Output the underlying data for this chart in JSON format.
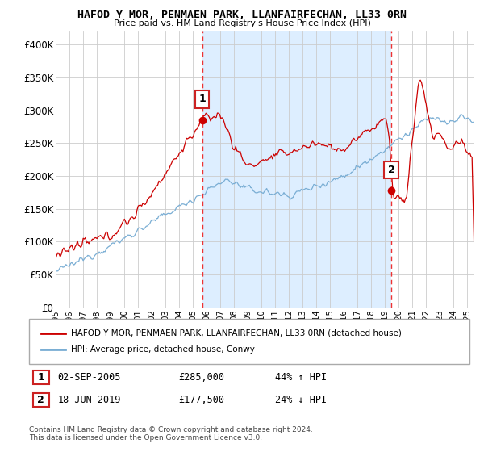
{
  "title": "HAFOD Y MOR, PENMAEN PARK, LLANFAIRFECHAN, LL33 0RN",
  "subtitle": "Price paid vs. HM Land Registry's House Price Index (HPI)",
  "ylabel_ticks": [
    "£0",
    "£50K",
    "£100K",
    "£150K",
    "£200K",
    "£250K",
    "£300K",
    "£350K",
    "£400K"
  ],
  "ytick_values": [
    0,
    50000,
    100000,
    150000,
    200000,
    250000,
    300000,
    350000,
    400000
  ],
  "ylim": [
    0,
    420000
  ],
  "sale1_x": 2005.67,
  "sale1_y": 285000,
  "sale2_x": 2019.46,
  "sale2_y": 177500,
  "sale1_date": "02-SEP-2005",
  "sale1_price": "£285,000",
  "sale1_hpi": "44% ↑ HPI",
  "sale2_date": "18-JUN-2019",
  "sale2_price": "£177,500",
  "sale2_hpi": "24% ↓ HPI",
  "hpi_line_color": "#7aaed4",
  "price_line_color": "#cc0000",
  "vline_color": "#ee3333",
  "shade_color": "#ddeeff",
  "background_color": "#ffffff",
  "grid_color": "#cccccc",
  "legend_label_price": "HAFOD Y MOR, PENMAEN PARK, LLANFAIRFECHAN, LL33 0RN (detached house)",
  "legend_label_hpi": "HPI: Average price, detached house, Conwy",
  "footer": "Contains HM Land Registry data © Crown copyright and database right 2024.\nThis data is licensed under the Open Government Licence v3.0.",
  "xlim_start": 1995.0,
  "xlim_end": 2025.5
}
